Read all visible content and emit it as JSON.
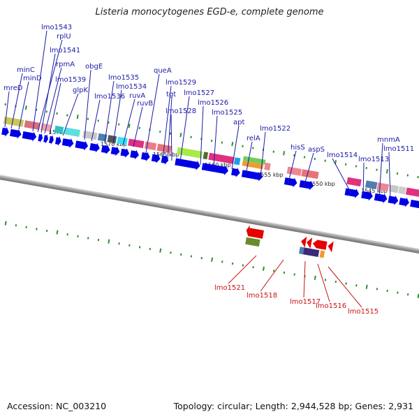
{
  "title": "Listeria monocytogenes EGD-e, complete genome",
  "accession": "Accession: NC_003210",
  "summary": "Topology: circular; Length: 2,944,528 bp; Genes: 2,931",
  "ticks": [
    "1575 kbp",
    "1570 kbp",
    "1565 kbp",
    "1560 kbp",
    "1555 kbp",
    "1550 kbp",
    "1545 kbp"
  ],
  "forward_labels": [
    "lmo1543",
    "rplU",
    "lmo1541",
    "rpmA",
    "lmo1539",
    "minC",
    "minD",
    "mreD",
    "glpK",
    "obgE",
    "lmo1535",
    "lmo1534",
    "lmo1536",
    "ruvA",
    "ruvB",
    "queA",
    "lmo1529",
    "tgt",
    "lmo1527",
    "lmo1528",
    "lmo1526",
    "lmo1525",
    "apt",
    "relA",
    "lmo1522",
    "hisS",
    "aspS",
    "lmo1514",
    "lmo1513",
    "mnmA",
    "lmo1511"
  ],
  "reverse_labels": [
    "lmo1521",
    "lmo1518",
    "lmo1517",
    "lmo1516",
    "lmo1515"
  ],
  "colors": {
    "forward_label": "#1a1aa8",
    "reverse_label": "#c81414",
    "cds_forward": "#0000e6",
    "cds_reverse": "#e60000",
    "tick": "#2f8f2f",
    "backbone": "#888888"
  }
}
